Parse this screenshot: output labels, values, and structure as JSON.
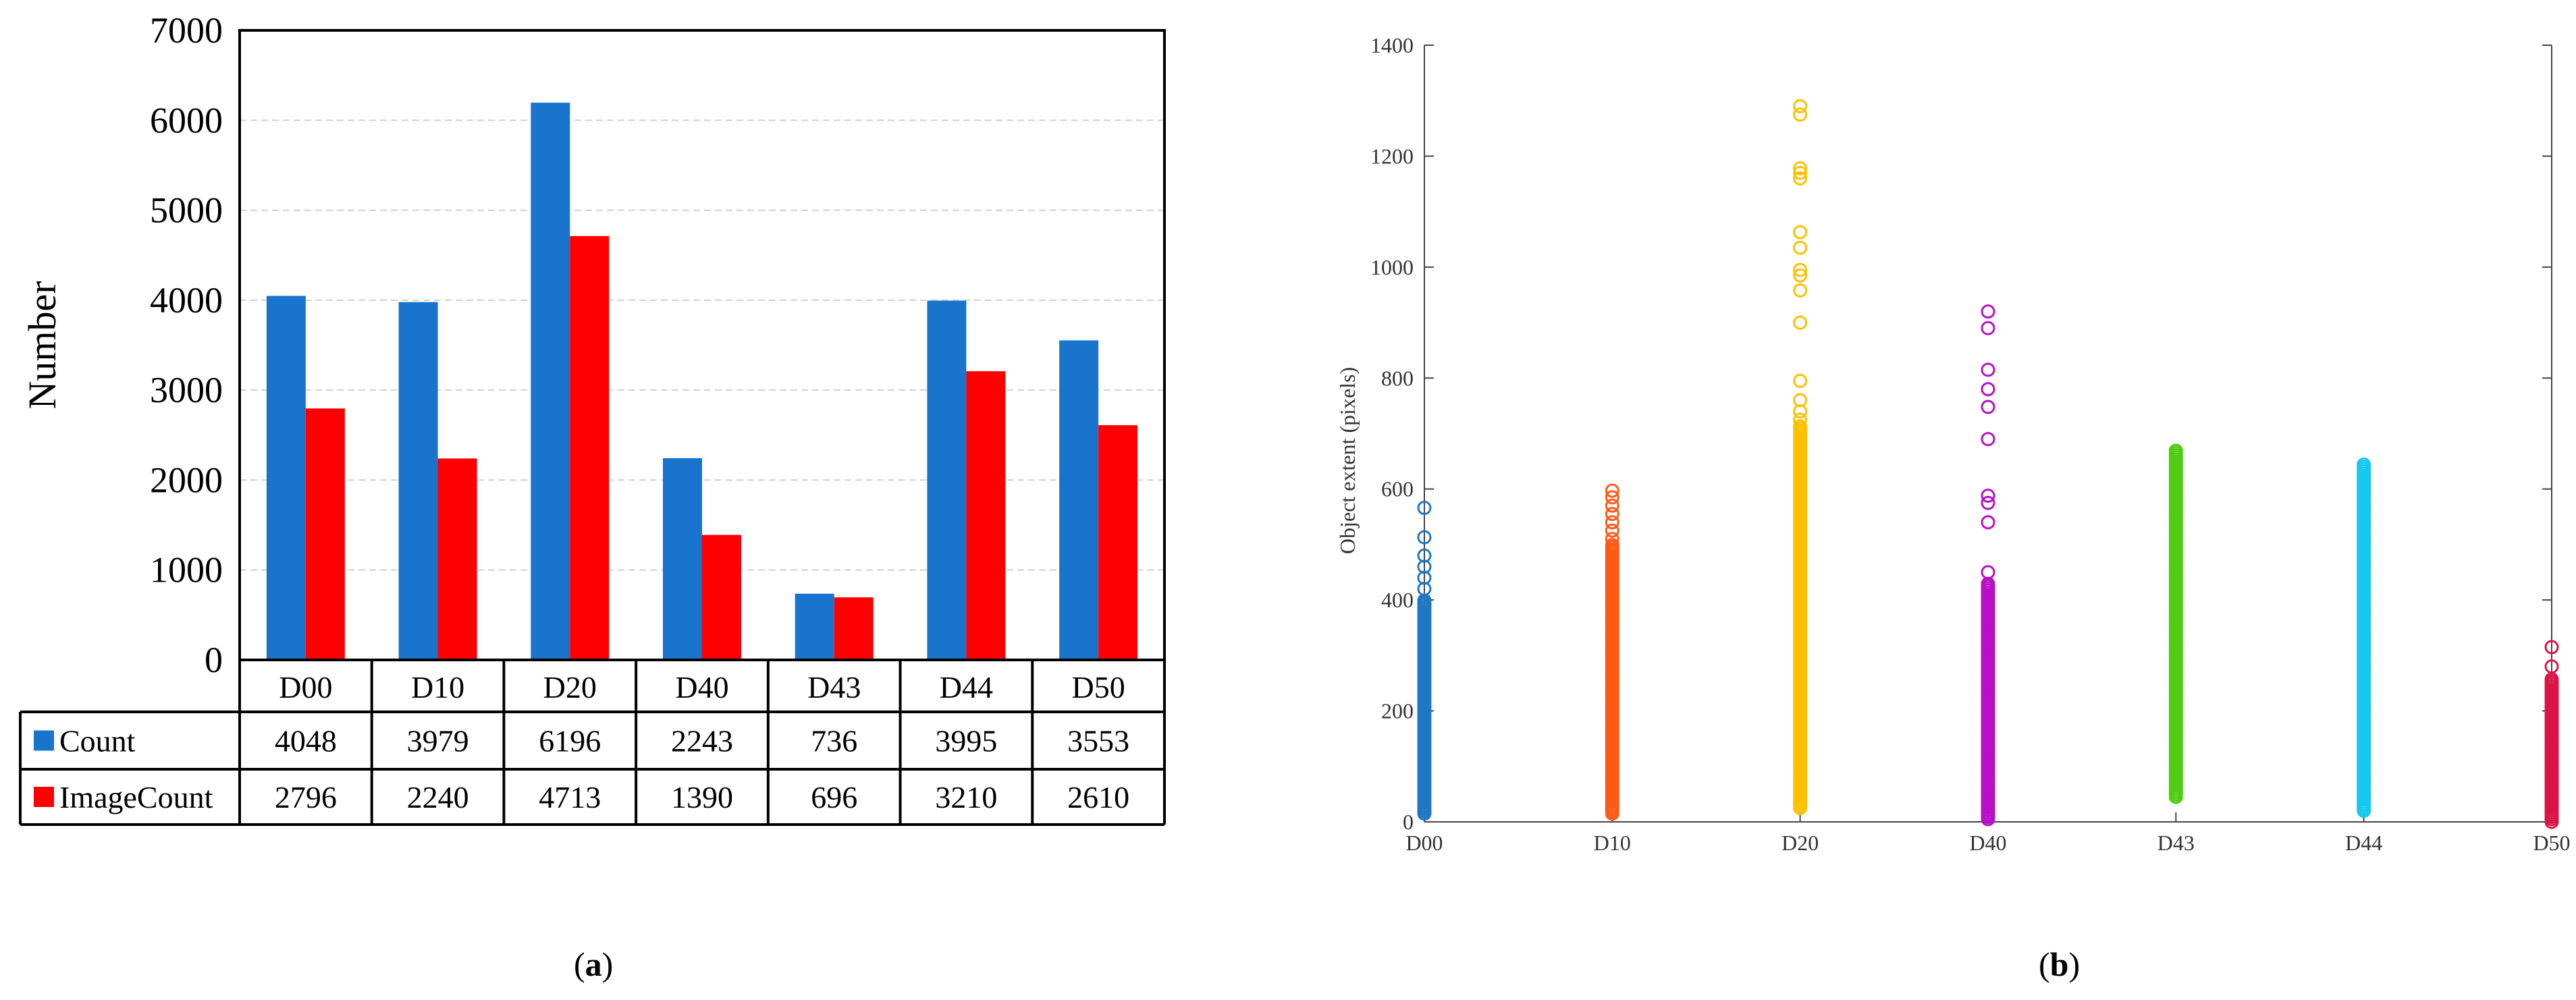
{
  "chart_data": [
    {
      "type": "bar",
      "title": "",
      "ylabel": "Number",
      "xlabel": "",
      "ylim": [
        0,
        7000
      ],
      "yticks": [
        0,
        1000,
        2000,
        3000,
        4000,
        5000,
        6000,
        7000
      ],
      "categories": [
        "D00",
        "D10",
        "D20",
        "D40",
        "D43",
        "D44",
        "D50"
      ],
      "series": [
        {
          "name": "Count",
          "color": "#1874cd",
          "values": [
            4048,
            3979,
            6196,
            2243,
            736,
            3995,
            3553
          ]
        },
        {
          "name": "ImageCount",
          "color": "#ff0000",
          "values": [
            2796,
            2240,
            4713,
            1390,
            696,
            3210,
            2610
          ]
        }
      ],
      "grid": true,
      "data_table": true
    },
    {
      "type": "scatter",
      "title": "",
      "ylabel": "Object extent (pixels)",
      "xlabel": "",
      "ylim": [
        0,
        1400
      ],
      "yticks": [
        0,
        200,
        400,
        600,
        800,
        1000,
        1200,
        1400
      ],
      "categories": [
        "D00",
        "D10",
        "D20",
        "D40",
        "D43",
        "D44",
        "D50"
      ],
      "series": [
        {
          "name": "D00",
          "color": "#1f77c4",
          "dense_range": [
            15,
            400
          ],
          "outliers": [
            420,
            440,
            460,
            480,
            513,
            566
          ]
        },
        {
          "name": "D10",
          "color": "#ff5a14",
          "dense_range": [
            15,
            500
          ],
          "outliers": [
            510,
            525,
            540,
            555,
            570,
            585,
            597
          ]
        },
        {
          "name": "D20",
          "color": "#ffc000",
          "dense_range": [
            25,
            715
          ],
          "outliers": [
            725,
            740,
            760,
            795,
            900,
            958,
            985,
            995,
            1035,
            1063,
            1160,
            1170,
            1178,
            1275,
            1290
          ]
        },
        {
          "name": "D40",
          "color": "#b80fc8",
          "dense_range": [
            5,
            430
          ],
          "outliers": [
            450,
            540,
            575,
            588,
            690,
            748,
            780,
            815,
            890,
            920
          ]
        },
        {
          "name": "D43",
          "color": "#50cc14",
          "dense_range": [
            45,
            670
          ],
          "outliers": []
        },
        {
          "name": "D44",
          "color": "#14c8f0",
          "dense_range": [
            20,
            645
          ],
          "outliers": []
        },
        {
          "name": "D50",
          "color": "#dc1446",
          "dense_range": [
            5,
            260
          ],
          "outliers": [
            280,
            315,
            0
          ]
        }
      ],
      "grid": false
    }
  ],
  "panels": {
    "a_open": "(",
    "a_letter": "a",
    "a_close": ")",
    "b_open": "(",
    "b_letter": "b",
    "b_close": ")"
  }
}
